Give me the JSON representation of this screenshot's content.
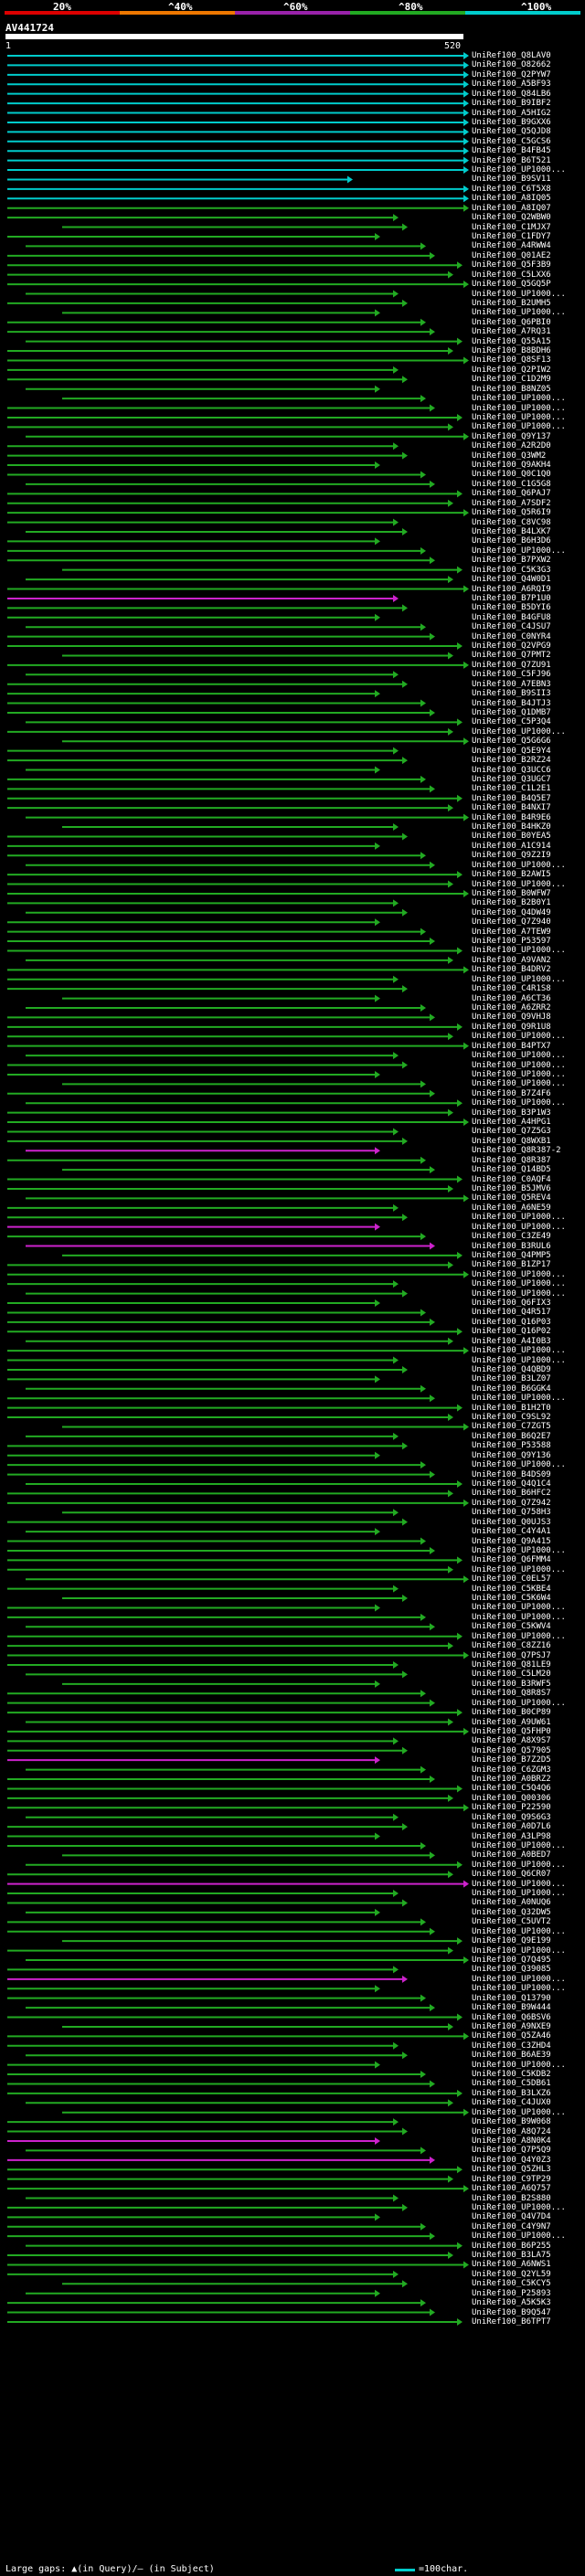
{
  "header": {
    "scale_labels": [
      "20%",
      "^40%",
      "^60%",
      "^80%",
      "^100%"
    ],
    "scale_colors": [
      "#dd0000",
      "#ee7700",
      "#9922aa",
      "#22aa22",
      "#00cccc"
    ],
    "query_id": "AV441724",
    "start": "1",
    "end": "520"
  },
  "colors": {
    "cyan": "#00cccc",
    "green": "#22aa22",
    "magenta": "#cc22cc",
    "query": "#ffffff"
  },
  "hits": [
    "UniRef100_Q8LAV0",
    "UniRef100_O82662",
    "UniRef100_Q2PYW7",
    "UniRef100_A5BF93",
    "UniRef100_Q84LB6",
    "UniRef100_B9IBF2",
    "UniRef100_A5HIG2",
    "UniRef100_B9GXX6",
    "UniRef100_Q5QJD8",
    "UniRef100_C5GCS6",
    "UniRef100_B4FB45",
    "UniRef100_B6T521",
    "UniRef100_UP1000...",
    "UniRef100_B9SV11",
    "UniRef100_C6T5X8",
    "UniRef100_A8IQ05",
    "UniRef100_A8IQ07",
    "UniRef100_Q2WBW0",
    "UniRef100_C1MJX7",
    "UniRef100_C1FDY7",
    "UniRef100_A4RWW4",
    "UniRef100_Q01AE2",
    "UniRef100_Q5F3B9",
    "UniRef100_C5LXX6",
    "UniRef100_Q5GQ5P",
    "UniRef100_UP1000...",
    "UniRef100_B2UMH5",
    "UniRef100_UP1000...",
    "UniRef100_Q6PBI0",
    "UniRef100_A7RQ31",
    "UniRef100_Q55A15",
    "UniRef100_B8BDH6",
    "UniRef100_Q8SF13",
    "UniRef100_Q2PIW2",
    "UniRef100_C1D2M9",
    "UniRef100_B8NZ05",
    "UniRef100_UP1000...",
    "UniRef100_UP1000...",
    "UniRef100_UP1000...",
    "UniRef100_UP1000...",
    "UniRef100_Q9Y137",
    "UniRef100_A2R2D0",
    "UniRef100_Q3WM2",
    "UniRef100_Q9AKH4",
    "UniRef100_Q0C1Q0",
    "UniRef100_C1G5G8",
    "UniRef100_Q6PAJ7",
    "UniRef100_A7SDF2",
    "UniRef100_Q5R6I9",
    "UniRef100_C8VC98",
    "UniRef100_B4LXK7",
    "UniRef100_B6H3D6",
    "UniRef100_UP1000...",
    "UniRef100_B7PXW2",
    "UniRef100_C5K3G3",
    "UniRef100_Q4W0D1",
    "UniRef100_A6RQI9",
    "UniRef100_B7P1U0",
    "UniRef100_B5DYI6",
    "UniRef100_B4GFU8",
    "UniRef100_C4JSU7",
    "UniRef100_C0NYR4",
    "UniRef100_Q2VPG9",
    "UniRef100_Q7PMT2",
    "UniRef100_Q7ZU91",
    "UniRef100_C5FJ96",
    "UniRef100_A7EBN3",
    "UniRef100_B9SII3",
    "UniRef100_B4JTJ3",
    "UniRef100_Q1DMB7",
    "UniRef100_C5P3Q4",
    "UniRef100_UP1000...",
    "UniRef100_Q5G6G6",
    "UniRef100_Q5E9Y4",
    "UniRef100_B2RZ24",
    "UniRef100_Q3UCC6",
    "UniRef100_Q3UGC7",
    "UniRef100_C1L2E1",
    "UniRef100_B4Q5E7",
    "UniRef100_B4NXI7",
    "UniRef100_B4R9E6",
    "UniRef100_B4HKZ0",
    "UniRef100_B0YEA5",
    "UniRef100_A1C914",
    "UniRef100_Q9Z2I9",
    "UniRef100_UP1000...",
    "UniRef100_B2AWI5",
    "UniRef100_UP1000...",
    "UniRef100_B0WFW7",
    "UniRef100_B2B0Y1",
    "UniRef100_Q4DW49",
    "UniRef100_Q7Z940",
    "UniRef100_A7TEW9",
    "UniRef100_P53597",
    "UniRef100_UP1000...",
    "UniRef100_A9VAN2",
    "UniRef100_B4DRV2",
    "UniRef100_UP1000...",
    "UniRef100_C4R1S8",
    "UniRef100_A6CT36",
    "UniRef100_A6ZRR2",
    "UniRef100_Q9VHJ8",
    "UniRef100_Q9R1U8",
    "UniRef100_UP1000...",
    "UniRef100_B4PTX7",
    "UniRef100_UP1000...",
    "UniRef100_UP1000...",
    "UniRef100_UP1000...",
    "UniRef100_UP1000...",
    "UniRef100_B7Z4F6",
    "UniRef100_UP1000...",
    "UniRef100_B3P1W3",
    "UniRef100_A4HPG1",
    "UniRef100_Q7Z5G3",
    "UniRef100_Q8WXB1",
    "UniRef100_Q8R387-2",
    "UniRef100_Q8R387",
    "UniRef100_Q14BD5",
    "UniRef100_C0AQF4",
    "UniRef100_B5JMV6",
    "UniRef100_Q5REV4",
    "UniRef100_A6NE59",
    "UniRef100_UP1000...",
    "UniRef100_UP1000...",
    "UniRef100_C3ZE49",
    "UniRef100_B3RUL6",
    "UniRef100_Q4PMP5",
    "UniRef100_B1ZP17",
    "UniRef100_UP1000...",
    "UniRef100_UP1000...",
    "UniRef100_UP1000...",
    "UniRef100_Q6FIX3",
    "UniRef100_Q4R517",
    "UniRef100_Q16P03",
    "UniRef100_Q16P02",
    "UniRef100_A4I0B3",
    "UniRef100_UP1000...",
    "UniRef100_UP1000...",
    "UniRef100_Q4QBD9",
    "UniRef100_B3LZ07",
    "UniRef100_B6GGK4",
    "UniRef100_UP1000...",
    "UniRef100_B1H2T0",
    "UniRef100_C9SL92",
    "UniRef100_C7ZGT5",
    "UniRef100_B6Q2E7",
    "UniRef100_P53588",
    "UniRef100_Q9Y136",
    "UniRef100_UP1000...",
    "UniRef100_B4DS09",
    "UniRef100_Q4Q1C4",
    "UniRef100_B6HFC2",
    "UniRef100_Q7Z942",
    "UniRef100_Q758H3",
    "UniRef100_Q0UJS3",
    "UniRef100_C4Y4A1",
    "UniRef100_Q9A415",
    "UniRef100_UP1000...",
    "UniRef100_Q6FMM4",
    "UniRef100_UP1000...",
    "UniRef100_C0EL57",
    "UniRef100_C5KBE4",
    "UniRef100_C5K6W4",
    "UniRef100_UP1000...",
    "UniRef100_UP1000...",
    "UniRef100_C5KWV4",
    "UniRef100_UP1000...",
    "UniRef100_C8ZZ16",
    "UniRef100_Q7PSJ7",
    "UniRef100_Q81LE9",
    "UniRef100_C5LM20",
    "UniRef100_B3RWF5",
    "UniRef100_Q8R8S7",
    "UniRef100_UP1000...",
    "UniRef100_B0CP89",
    "UniRef100_A9UW61",
    "UniRef100_Q5FHP0",
    "UniRef100_A8X9S7",
    "UniRef100_Q57905",
    "UniRef100_B7Z2D5",
    "UniRef100_C6ZGM3",
    "UniRef100_A0BRZ2",
    "UniRef100_C5Q4Q6",
    "UniRef100_Q00306",
    "UniRef100_P22590",
    "UniRef100_Q9S6G3",
    "UniRef100_A0D7L6",
    "UniRef100_A3LP98",
    "UniRef100_UP1000...",
    "UniRef100_A0BED7",
    "UniRef100_UP1000...",
    "UniRef100_Q6CR07",
    "UniRef100_UP1000...",
    "UniRef100_UP1000...",
    "UniRef100_A0NUQ6",
    "UniRef100_Q32DW5",
    "UniRef100_C5UVT2",
    "UniRef100_UP1000...",
    "UniRef100_Q9E199",
    "UniRef100_UP1000...",
    "UniRef100_Q7Q495",
    "UniRef100_Q39085",
    "UniRef100_UP1000...",
    "UniRef100_UP1000...",
    "UniRef100_Q13790",
    "UniRef100_B9W444",
    "UniRef100_Q6BSV6",
    "UniRef100_A9NXE9",
    "UniRef100_Q5ZA46",
    "UniRef100_C3ZHD4",
    "UniRef100_B6AE39",
    "UniRef100_UP1000...",
    "UniRef100_C5KDB2",
    "UniRef100_C5DB61",
    "UniRef100_B3LXZ6",
    "UniRef100_C4JUX0",
    "UniRef100_UP1000...",
    "UniRef100_B9W068",
    "UniRef100_A8Q724",
    "UniRef100_A8N0K4",
    "UniRef100_Q7P5Q9",
    "UniRef100_Q4Y0Z3",
    "UniRef100_Q5ZHL3",
    "UniRef100_C9TP29",
    "UniRef100_A6Q757",
    "UniRef100_B2S880",
    "UniRef100_UP1000...",
    "UniRef100_Q4V7D4",
    "UniRef100_C4Y9N7",
    "UniRef100_UP1000...",
    "UniRef100_B6P255",
    "UniRef100_B3LA75",
    "UniRef100_A6NWS1",
    "UniRef100_Q2YL59",
    "UniRef100_C5KCY5",
    "UniRef100_P25893",
    "UniRef100_A5K5K3",
    "UniRef100_B9Q547",
    "UniRef100_B6TPT7"
  ],
  "footer": {
    "gaps_text": "Large gaps: ▲(in Query)/– (in Subject)",
    "legend_text": "=100char."
  }
}
